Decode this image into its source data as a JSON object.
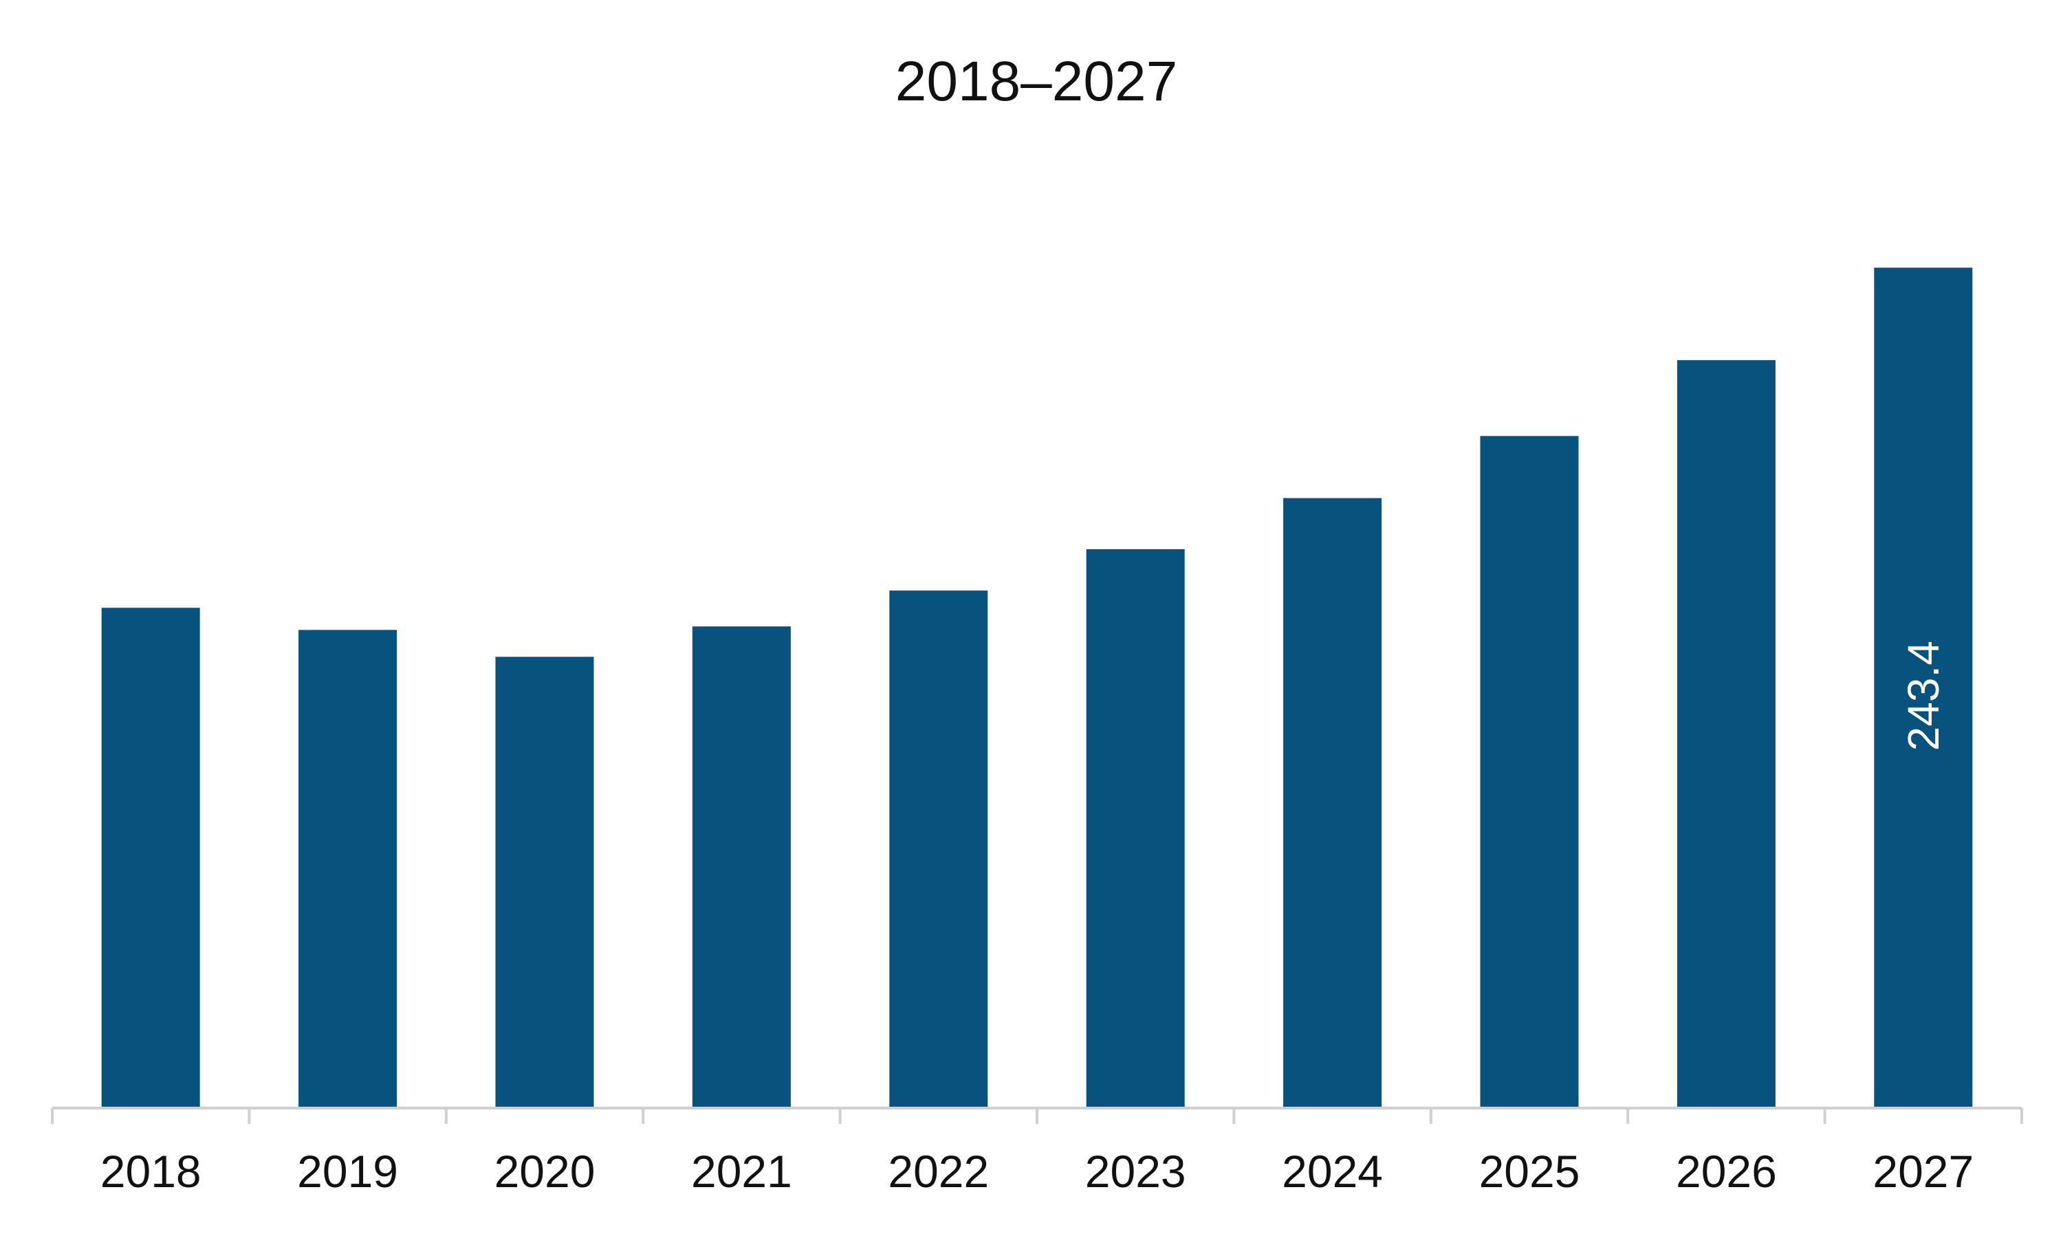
{
  "chart_data": {
    "type": "bar",
    "title": "2018–2027",
    "xlabel": "",
    "ylabel": "",
    "categories": [
      "2018",
      "2019",
      "2020",
      "2021",
      "2022",
      "2023",
      "2024",
      "2025",
      "2026",
      "2027"
    ],
    "values": [
      144.8,
      138.4,
      130.6,
      139.4,
      149.8,
      161.8,
      176.6,
      194.6,
      216.6,
      243.4
    ],
    "ylim": [
      0,
      262
    ],
    "data_labels": [
      {
        "category": "2027",
        "text": "243.4",
        "orientation": "vertical"
      }
    ],
    "grid": false,
    "legend": "none",
    "colors": {
      "bar": "#08527e",
      "axis": "#d0d0d0",
      "text": "#111111",
      "data_label": "#ffffff"
    }
  }
}
